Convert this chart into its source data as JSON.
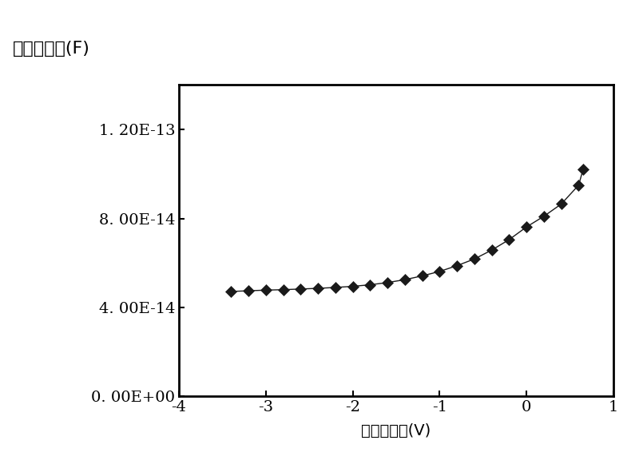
{
  "title": "集电结电容(F)",
  "xlabel": "集电结偏压(V)",
  "xlim": [
    -4,
    1
  ],
  "ylim": [
    0,
    1.4e-13
  ],
  "xticks": [
    -4,
    -3,
    -2,
    -1,
    0,
    1
  ],
  "yticks": [
    0.0,
    4e-14,
    8e-14,
    1.2e-13
  ],
  "ytick_labels": [
    "0. 00E+00",
    "4. 00E-14",
    "8. 00E-14",
    "1. 20E-13"
  ],
  "xtick_labels": [
    "-4",
    "-3",
    "-2",
    "-1",
    "0",
    "1"
  ],
  "x_data": [
    -3.4,
    -3.2,
    -3.0,
    -2.8,
    -2.6,
    -2.4,
    -2.2,
    -2.0,
    -1.8,
    -1.6,
    -1.4,
    -1.2,
    -1.0,
    -0.8,
    -0.6,
    -0.4,
    -0.2,
    0.0,
    0.2,
    0.4,
    0.6,
    0.65
  ],
  "y_data": [
    4.72e-14,
    4.75e-14,
    4.78e-14,
    4.8e-14,
    4.83e-14,
    4.86e-14,
    4.9e-14,
    4.95e-14,
    5.02e-14,
    5.12e-14,
    5.25e-14,
    5.42e-14,
    5.62e-14,
    5.88e-14,
    6.18e-14,
    6.58e-14,
    7.05e-14,
    7.62e-14,
    8.1e-14,
    8.65e-14,
    9.5e-14,
    1.02e-13
  ],
  "line_color": "#1a1a1a",
  "marker": "D",
  "marker_size": 7,
  "marker_color": "#1a1a1a",
  "linewidth": 1.0,
  "background_color": "#ffffff",
  "plot_bg_color": "#ffffff",
  "title_fontsize": 16,
  "label_fontsize": 14,
  "tick_fontsize": 14
}
